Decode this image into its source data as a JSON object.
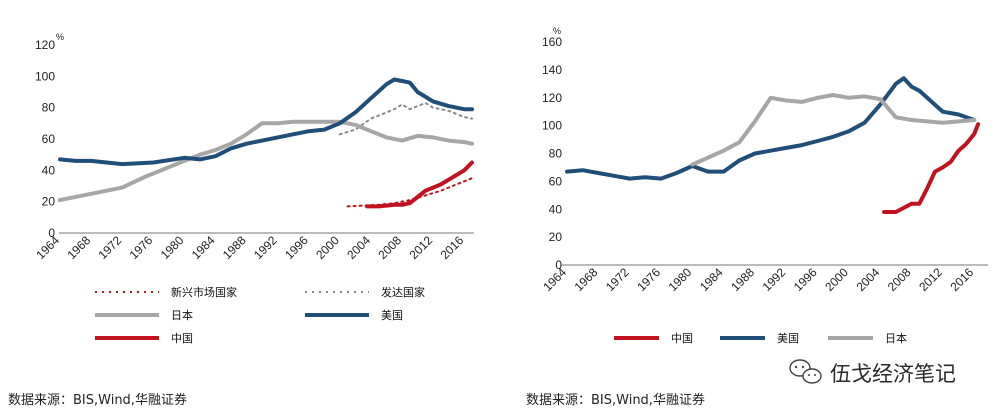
{
  "chart_data": [
    {
      "type": "line",
      "unit_label": "%",
      "ylim": [
        0,
        120
      ],
      "y_ticks": [
        0,
        20,
        40,
        60,
        80,
        100,
        120
      ],
      "xlim": [
        1964,
        2017
      ],
      "x_ticks": [
        1964,
        1968,
        1972,
        1976,
        1980,
        1984,
        1988,
        1992,
        1996,
        2000,
        2004,
        2008,
        2012,
        2016
      ],
      "grid": false,
      "legend_position": "bottom",
      "series": [
        {
          "name": "新兴市场国家",
          "color": "#c0121f",
          "style": "dotted",
          "x": [
            2001,
            2003,
            2005,
            2007,
            2009,
            2011,
            2013,
            2015,
            2017
          ],
          "y": [
            17,
            17.5,
            18,
            19,
            21,
            24,
            27,
            31,
            35
          ]
        },
        {
          "name": "发达国家",
          "color": "#8a8a8a",
          "style": "dotted",
          "x": [
            2000,
            2002,
            2004,
            2006,
            2007,
            2008,
            2009,
            2010,
            2011,
            2012,
            2014,
            2016,
            2017
          ],
          "y": [
            63,
            66,
            73,
            77,
            79,
            82,
            79,
            81,
            83,
            80,
            78,
            74,
            73
          ]
        },
        {
          "name": "日本",
          "color": "#a6a6a6",
          "style": "solid",
          "x": [
            1964,
            1968,
            1972,
            1975,
            1978,
            1980,
            1982,
            1984,
            1986,
            1988,
            1990,
            1992,
            1994,
            1996,
            1998,
            2000,
            2002,
            2004,
            2006,
            2008,
            2010,
            2012,
            2014,
            2016,
            2017
          ],
          "y": [
            21,
            25,
            29,
            36,
            42,
            46,
            50,
            53,
            57,
            63,
            70,
            70,
            71,
            71,
            71,
            71,
            69,
            65,
            61,
            59,
            62,
            61,
            59,
            58,
            57
          ]
        },
        {
          "name": "美国",
          "color": "#1f4e79",
          "style": "solid",
          "x": [
            1964,
            1966,
            1968,
            1970,
            1972,
            1976,
            1980,
            1982,
            1984,
            1986,
            1988,
            1990,
            1992,
            1994,
            1996,
            1998,
            2000,
            2002,
            2004,
            2006,
            2007,
            2008,
            2009,
            2010,
            2012,
            2014,
            2016,
            2017
          ],
          "y": [
            47,
            46,
            46,
            45,
            44,
            45,
            48,
            47,
            49,
            54,
            57,
            59,
            61,
            63,
            65,
            66,
            70,
            77,
            86,
            95,
            98,
            97,
            96,
            90,
            84,
            81,
            79,
            79
          ]
        },
        {
          "name": "中国",
          "color": "#c0121f",
          "style": "solid",
          "x": [
            2003.5,
            2005,
            2006,
            2007,
            2008,
            2009,
            2010,
            2011,
            2012,
            2013,
            2014,
            2015,
            2016,
            2017
          ],
          "y": [
            17,
            17,
            17.5,
            18,
            18,
            19,
            23,
            27,
            29,
            31,
            34,
            37,
            40,
            45
          ]
        }
      ]
    },
    {
      "type": "line",
      "unit_label": "%",
      "ylim": [
        0,
        160
      ],
      "y_ticks": [
        0,
        20,
        40,
        60,
        80,
        100,
        120,
        140,
        160
      ],
      "xlim": [
        1964,
        2017
      ],
      "x_ticks": [
        1964,
        1968,
        1972,
        1976,
        1980,
        1984,
        1988,
        1992,
        1996,
        2000,
        2004,
        2008,
        2012,
        2016
      ],
      "grid": false,
      "legend_position": "bottom",
      "series": [
        {
          "name": "中国",
          "color": "#c0121f",
          "style": "solid",
          "x": [
            2004.5,
            2006,
            2007,
            2008,
            2009,
            2010,
            2011,
            2012,
            2013,
            2014,
            2015,
            2016,
            2016.5
          ],
          "y": [
            38,
            38,
            41,
            44,
            44,
            55,
            67,
            70,
            74,
            82,
            87,
            94,
            101
          ]
        },
        {
          "name": "美国",
          "color": "#1f4e79",
          "style": "solid",
          "x": [
            1964,
            1966,
            1968,
            1970,
            1972,
            1974,
            1976,
            1978,
            1980,
            1982,
            1984,
            1986,
            1988,
            1990,
            1992,
            1994,
            1996,
            1998,
            2000,
            2002,
            2004,
            2006,
            2007,
            2008,
            2009,
            2010,
            2012,
            2014,
            2016
          ],
          "y": [
            67,
            68,
            66,
            64,
            62,
            63,
            62,
            66,
            71,
            67,
            67,
            75,
            80,
            82,
            84,
            86,
            89,
            92,
            96,
            102,
            115,
            130,
            134,
            128,
            125,
            120,
            110,
            108,
            104
          ]
        },
        {
          "name": "日本",
          "color": "#a6a6a6",
          "style": "solid",
          "x": [
            1980,
            1982,
            1984,
            1986,
            1988,
            1990,
            1992,
            1994,
            1996,
            1998,
            2000,
            2002,
            2004,
            2006,
            2008,
            2010,
            2012,
            2014,
            2016
          ],
          "y": [
            72,
            77,
            82,
            88,
            103,
            120,
            118,
            117,
            120,
            122,
            120,
            121,
            119,
            106,
            104,
            103,
            102,
            103,
            104
          ]
        }
      ]
    }
  ],
  "source_left": "数据来源：BIS,Wind,华融证券",
  "source_right": "数据来源：BIS,Wind,华融证券",
  "watermark": {
    "text": "伍戈经济笔记",
    "icon": "wechat-icon"
  }
}
